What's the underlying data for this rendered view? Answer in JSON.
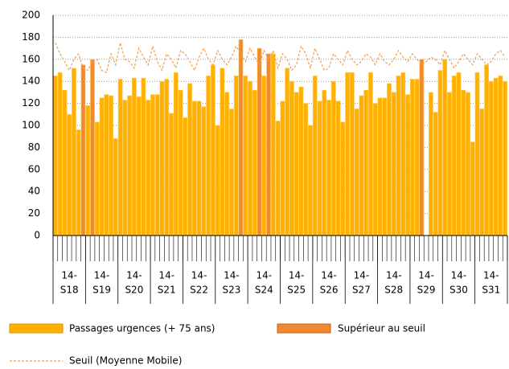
{
  "chart_data": {
    "type": "bar",
    "weeks": [
      [
        "14-",
        "S18"
      ],
      [
        "14-",
        "S19"
      ],
      [
        "14-",
        "S20"
      ],
      [
        "14-",
        "S21"
      ],
      [
        "14-",
        "S22"
      ],
      [
        "14-",
        "S23"
      ],
      [
        "14-",
        "S24"
      ],
      [
        "14-",
        "S25"
      ],
      [
        "14-",
        "S26"
      ],
      [
        "14-",
        "S27"
      ],
      [
        "14-",
        "S28"
      ],
      [
        "14-",
        "S29"
      ],
      [
        "14-",
        "S30"
      ],
      [
        "14-",
        "S31"
      ]
    ],
    "ylim": [
      0,
      200
    ],
    "yticks": [
      0,
      20,
      40,
      60,
      80,
      100,
      120,
      140,
      160,
      180,
      200
    ],
    "grid": true,
    "series": [
      {
        "name": "Passages urgences (+ 75 ans)",
        "color": "#ffb000",
        "kind": "bar",
        "values": [
          145,
          148,
          132,
          110,
          152,
          96,
          null,
          118,
          null,
          103,
          125,
          128,
          127,
          88,
          142,
          123,
          127,
          143,
          126,
          143,
          123,
          128,
          128,
          140,
          142,
          111,
          148,
          132,
          107,
          138,
          122,
          122,
          117,
          145,
          155,
          100,
          152,
          130,
          115,
          145,
          null,
          145,
          140,
          132,
          null,
          145,
          null,
          165,
          104,
          122,
          152,
          140,
          130,
          135,
          120,
          100,
          145,
          122,
          132,
          123,
          140,
          122,
          103,
          148,
          148,
          115,
          127,
          132,
          148,
          120,
          125,
          125,
          138,
          130,
          145,
          148,
          128,
          142,
          142,
          143,
          null,
          130,
          112,
          150,
          160,
          130,
          145,
          148,
          132,
          130,
          85,
          148,
          115,
          155,
          140,
          143,
          145,
          140
        ]
      },
      {
        "name": "Supérieur au seuil",
        "color": "#f08a30",
        "kind": "bar",
        "values": [
          null,
          null,
          null,
          null,
          null,
          null,
          155,
          null,
          160,
          null,
          null,
          null,
          null,
          null,
          null,
          null,
          null,
          null,
          null,
          null,
          null,
          null,
          null,
          null,
          null,
          null,
          null,
          null,
          null,
          null,
          null,
          null,
          null,
          null,
          null,
          null,
          null,
          null,
          null,
          null,
          178,
          null,
          null,
          null,
          170,
          null,
          165,
          null,
          null,
          null,
          null,
          null,
          null,
          null,
          null,
          null,
          null,
          null,
          null,
          null,
          null,
          null,
          null,
          null,
          null,
          null,
          null,
          null,
          null,
          null,
          null,
          null,
          null,
          null,
          null,
          null,
          null,
          null,
          null,
          160,
          null,
          null,
          null,
          null,
          null,
          null,
          null,
          null,
          null,
          null,
          null,
          null,
          null,
          null,
          null,
          null,
          null
        ]
      },
      {
        "name": "Seuil (Moyenne Mobile)",
        "color": "#f0a050",
        "kind": "line",
        "values": [
          175,
          165,
          158,
          150,
          160,
          165,
          152,
          150,
          158,
          160,
          150,
          148,
          165,
          155,
          175,
          160,
          158,
          152,
          170,
          162,
          155,
          172,
          158,
          150,
          165,
          160,
          152,
          168,
          165,
          158,
          150,
          162,
          170,
          160,
          155,
          168,
          160,
          155,
          162,
          172,
          165,
          158,
          170,
          162,
          155,
          168,
          160,
          168,
          152,
          165,
          160,
          150,
          155,
          172,
          165,
          152,
          170,
          160,
          150,
          152,
          165,
          160,
          155,
          168,
          160,
          155,
          158,
          165,
          162,
          155,
          165,
          158,
          155,
          160,
          168,
          162,
          158,
          165,
          160,
          155,
          158,
          162,
          160,
          155,
          168,
          160,
          152,
          158,
          165,
          160,
          155,
          165,
          160,
          155,
          158,
          165,
          168,
          162
        ]
      }
    ]
  }
}
